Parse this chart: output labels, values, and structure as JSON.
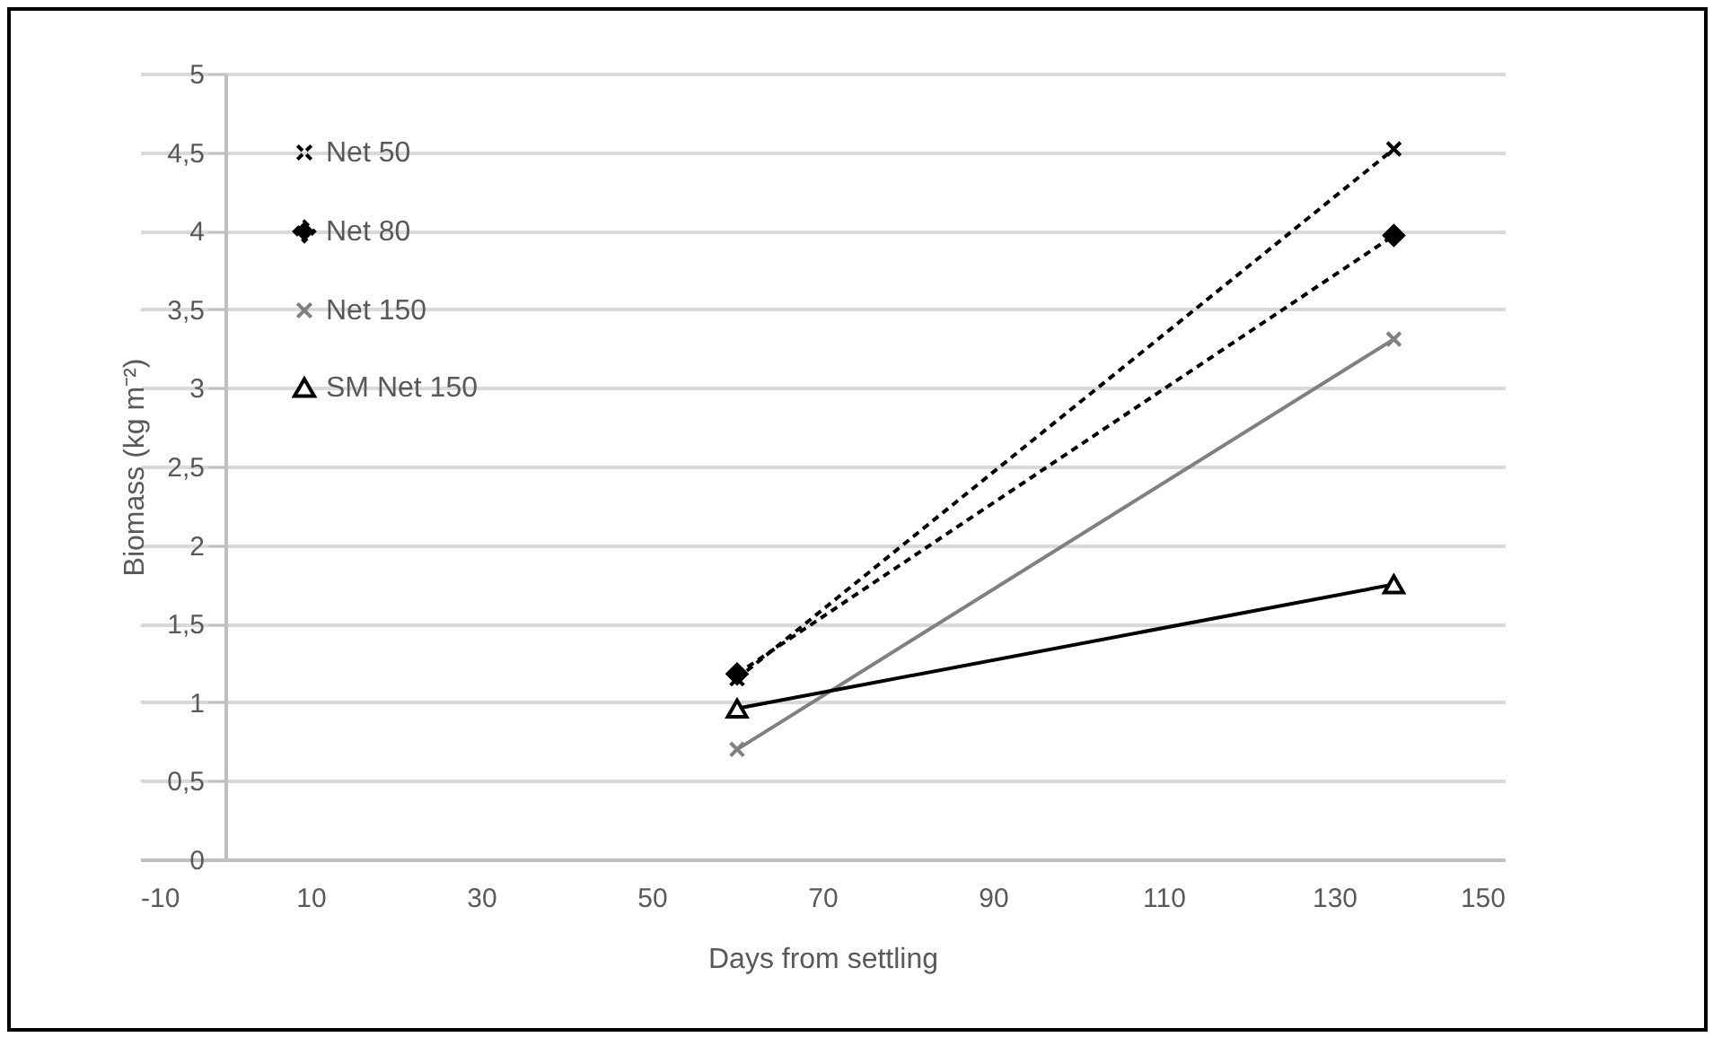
{
  "chart_data": {
    "type": "line",
    "xlabel": "Days from settling",
    "ylabel": "Biomass (kg m⁻²)",
    "x": [
      60,
      137
    ],
    "series": [
      {
        "name": "Net 50",
        "color": "#000000",
        "values": [
          1.15,
          4.52
        ],
        "marker": "cross",
        "line_style": "dashed"
      },
      {
        "name": "Net 80",
        "color": "#000000",
        "values": [
          1.18,
          3.97
        ],
        "marker": "diamond",
        "line_style": "dashed"
      },
      {
        "name": "Net 150",
        "color": "#808080",
        "values": [
          0.7,
          3.31
        ],
        "marker": "cross",
        "line_style": "solid"
      },
      {
        "name": "SM Net 150",
        "color": "#000000",
        "values": [
          0.96,
          1.75
        ],
        "marker": "triangle",
        "line_style": "solid"
      }
    ],
    "xlim": [
      -10,
      150
    ],
    "xticks": [
      -10,
      10,
      30,
      50,
      70,
      90,
      110,
      130,
      150
    ],
    "ylim": [
      0,
      5
    ],
    "yticks": [
      0,
      {
        "value": 0.5,
        "label": "0,5"
      },
      1,
      {
        "value": 1.5,
        "label": "1,5"
      },
      2,
      {
        "value": 2.5,
        "label": "2,5"
      },
      3,
      {
        "value": 3.5,
        "label": "3,5"
      },
      4,
      {
        "value": 4.5,
        "label": "4,5"
      },
      5
    ],
    "grid": "y",
    "legend": "top left"
  }
}
